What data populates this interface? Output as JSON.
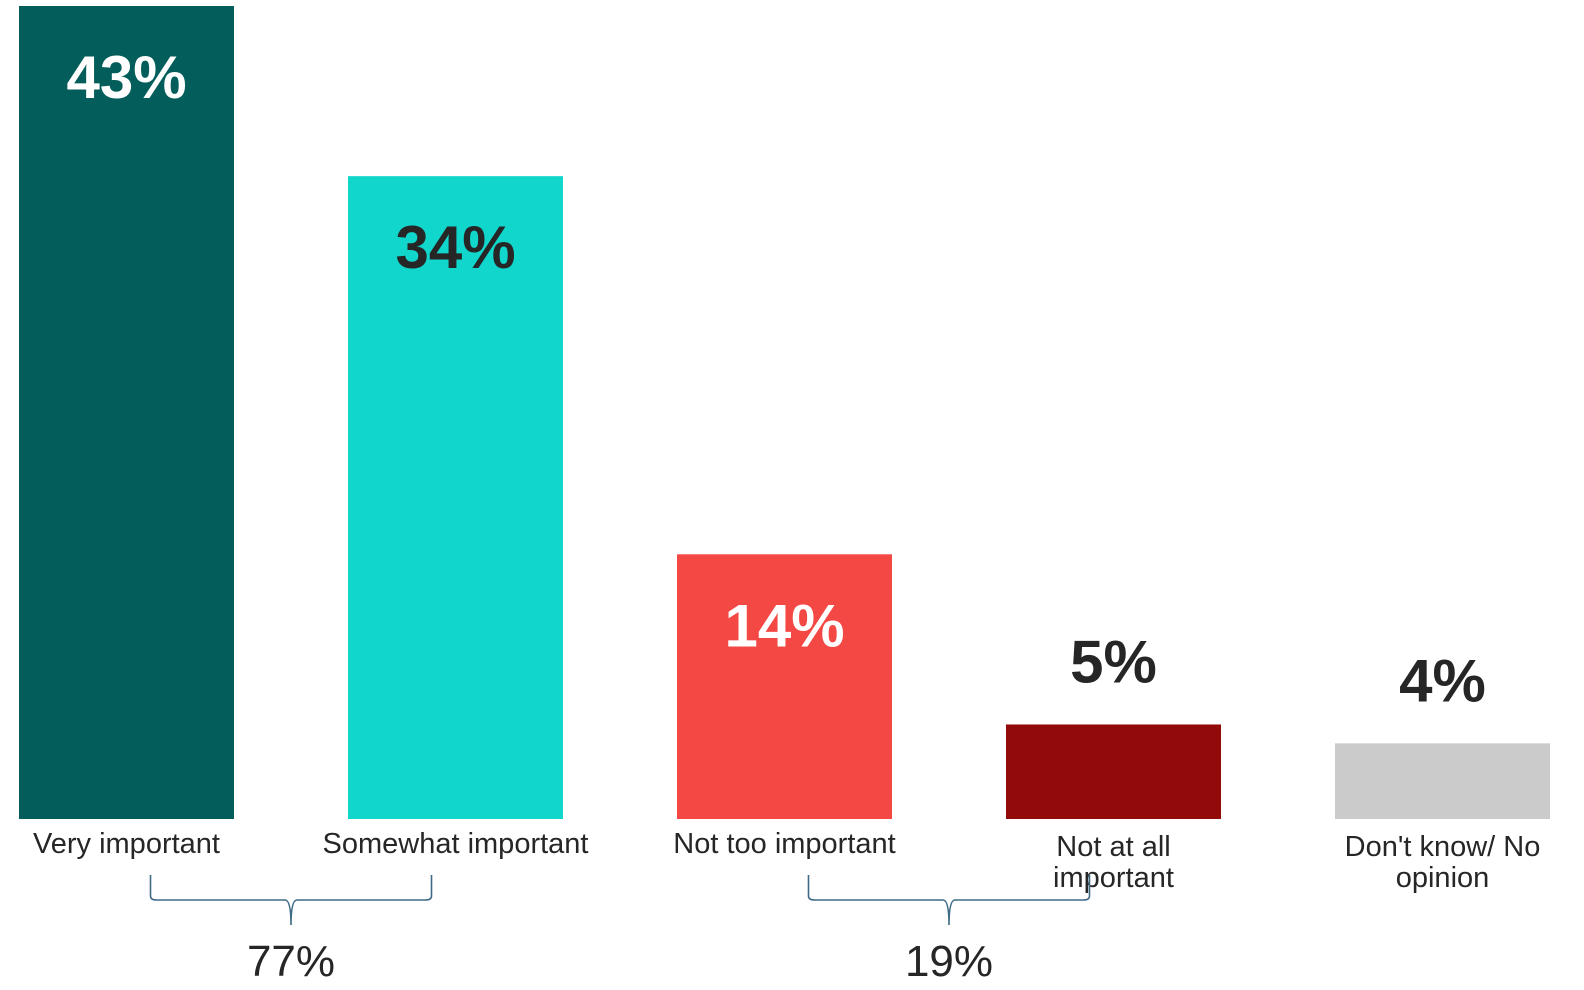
{
  "chart_data": {
    "type": "bar",
    "categories": [
      "Very important",
      "Somewhat important",
      "Not too important",
      "Not at all important",
      "Don't know/ No opinion"
    ],
    "values": [
      43,
      34,
      14,
      5,
      4
    ],
    "data_labels": [
      "43%",
      "34%",
      "14%",
      "5%",
      "4%"
    ],
    "colors": [
      "#035e5b",
      "#10d6cc",
      "#f44845",
      "#930a0a",
      "#cbcbcb"
    ],
    "label_colors": [
      "#ffffff",
      "#262626",
      "#ffffff",
      "#262626",
      "#262626"
    ],
    "groups": [
      {
        "label": "77%",
        "categories": [
          "Very important",
          "Somewhat important"
        ]
      },
      {
        "label": "19%",
        "categories": [
          "Not too important",
          "Not at all important"
        ]
      }
    ],
    "ylim": [
      0,
      43
    ],
    "grid": false,
    "legend": "none"
  }
}
